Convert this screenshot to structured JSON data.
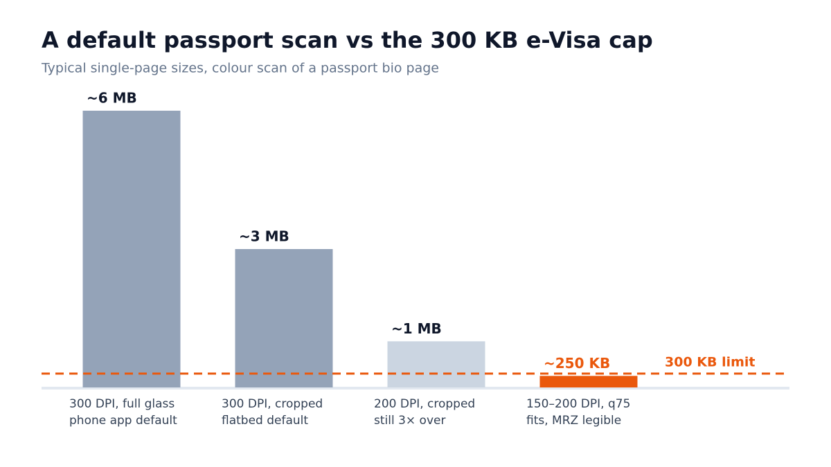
{
  "chart_data": {
    "type": "bar",
    "title": "A default passport scan vs the 300 KB e-Visa cap",
    "subtitle": "Typical single-page sizes, colour scan of a passport bio page",
    "categories": [
      [
        "300 DPI, full glass",
        "phone app default"
      ],
      [
        "300 DPI, cropped",
        "flatbed default"
      ],
      [
        "200 DPI, cropped",
        "still 3× over"
      ],
      [
        "150–200 DPI, q75",
        "fits, MRZ legible"
      ]
    ],
    "values": [
      6000,
      3000,
      1000,
      250
    ],
    "value_labels": [
      "~6 MB",
      "~3 MB",
      "~1 MB",
      "~250 KB"
    ],
    "colors": [
      "#94a3b8",
      "#94a3b8",
      "#cbd5e1",
      "#ea580c"
    ],
    "value_label_colors": [
      "#0f172a",
      "#0f172a",
      "#0f172a",
      "#ea580c"
    ],
    "ylim": [
      0,
      6000
    ],
    "reference_line": {
      "value": 300,
      "label": "300 KB limit",
      "color": "#ea580c"
    }
  }
}
